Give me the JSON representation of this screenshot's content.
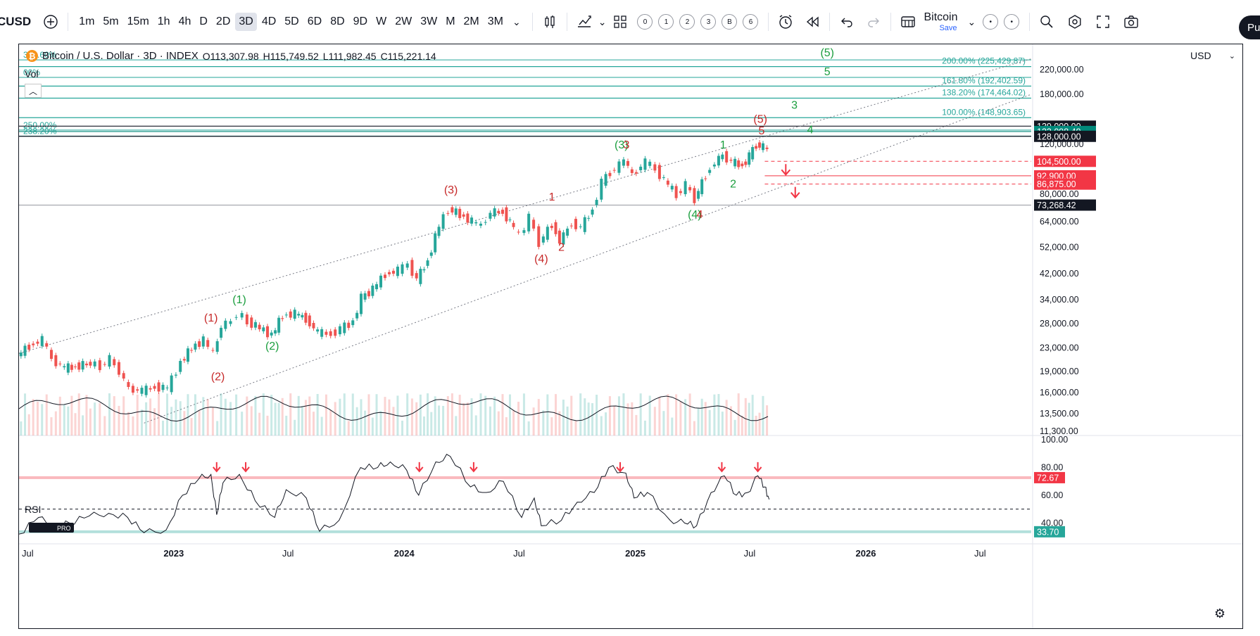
{
  "toolbar": {
    "symbol": "CUSD",
    "add_icon": "plus-circle-icon",
    "timeframes": [
      "1m",
      "5m",
      "15m",
      "1h",
      "4h",
      "D",
      "2D",
      "3D",
      "4D",
      "5D",
      "6D",
      "8D",
      "9D",
      "W",
      "2W",
      "3W",
      "M",
      "2M",
      "3M"
    ],
    "active_timeframe": "3D",
    "bar_counts": [
      "0",
      "1",
      "2",
      "3",
      "B",
      "6"
    ],
    "layout_name": "Bitcoin",
    "save_label": "Save",
    "publish_label": "Pu"
  },
  "legend": {
    "title": "Bitcoin / U.S. Dollar · 3D · INDEX",
    "open": "O113,307.98",
    "high": "H115,749.52",
    "low": "L111,982.45",
    "close": "C115,221.14",
    "vol_label": "Vol",
    "rsi_label": "RSI",
    "currency": "USD"
  },
  "chart_data": {
    "type": "line",
    "title": "Bitcoin / U.S. Dollar · 3D · INDEX",
    "y_scale": "log",
    "ylim": [
      11300,
      270000
    ],
    "x_range": [
      "2022-05-01",
      "2026-09-20"
    ],
    "price_axis_ticks": [
      "220,000.00",
      "180,000.00",
      "120,000.00",
      "80,000.00",
      "64,000.00",
      "52,000.00",
      "42,000.00",
      "34,000.00",
      "28,000.00",
      "23,000.00",
      "19,000.00",
      "16,000.00",
      "13,500.00",
      "11,300.00"
    ],
    "time_axis_ticks": [
      {
        "date": "2022-05-01",
        "label": "Jul"
      },
      {
        "date": "2023-01-01",
        "label": "2023"
      },
      {
        "date": "2023-07-01",
        "label": "Jul"
      },
      {
        "date": "2024-01-01",
        "label": "2024"
      },
      {
        "date": "2024-07-01",
        "label": "Jul"
      },
      {
        "date": "2025-01-01",
        "label": "2025"
      },
      {
        "date": "2025-07-01",
        "label": "Jul"
      },
      {
        "date": "2026-01-01",
        "label": "2026"
      },
      {
        "date": "2026-07-01",
        "label": "Jul"
      }
    ],
    "price_series": {
      "name": "BTCUSD",
      "points": [
        [
          "2022-05-01",
          21500
        ],
        [
          "2022-05-20",
          23500
        ],
        [
          "2022-06-10",
          24500
        ],
        [
          "2022-06-25",
          21000
        ],
        [
          "2022-07-15",
          19500
        ],
        [
          "2022-08-01",
          19800
        ],
        [
          "2022-08-25",
          20300
        ],
        [
          "2022-09-10",
          19900
        ],
        [
          "2022-09-25",
          21000
        ],
        [
          "2022-10-10",
          19000
        ],
        [
          "2022-10-25",
          16500
        ],
        [
          "2022-11-15",
          16200
        ],
        [
          "2022-12-05",
          16800
        ],
        [
          "2022-12-25",
          16600
        ],
        [
          "2023-01-15",
          20500
        ],
        [
          "2023-02-01",
          23000
        ],
        [
          "2023-02-20",
          24500
        ],
        [
          "2023-03-08",
          22000
        ],
        [
          "2023-03-20",
          27500
        ],
        [
          "2023-04-05",
          28500
        ],
        [
          "2023-04-15",
          30500
        ],
        [
          "2023-05-01",
          28500
        ],
        [
          "2023-05-20",
          27000
        ],
        [
          "2023-06-08",
          25500
        ],
        [
          "2023-06-25",
          30000
        ],
        [
          "2023-07-15",
          30300
        ],
        [
          "2023-08-01",
          29200
        ],
        [
          "2023-08-20",
          26000
        ],
        [
          "2023-09-10",
          25800
        ],
        [
          "2023-09-25",
          26800
        ],
        [
          "2023-10-15",
          28500
        ],
        [
          "2023-10-28",
          34500
        ],
        [
          "2023-11-15",
          37000
        ],
        [
          "2023-12-05",
          42000
        ],
        [
          "2023-12-25",
          43000
        ],
        [
          "2024-01-10",
          45500
        ],
        [
          "2024-01-24",
          40000
        ],
        [
          "2024-02-10",
          47000
        ],
        [
          "2024-02-28",
          62000
        ],
        [
          "2024-03-14",
          71000
        ],
        [
          "2024-04-01",
          68000
        ],
        [
          "2024-04-20",
          64000
        ],
        [
          "2024-05-05",
          62000
        ],
        [
          "2024-05-20",
          69000
        ],
        [
          "2024-06-08",
          69500
        ],
        [
          "2024-06-25",
          61000
        ],
        [
          "2024-07-05",
          57000
        ],
        [
          "2024-07-20",
          66000
        ],
        [
          "2024-08-05",
          54000
        ],
        [
          "2024-08-25",
          63000
        ],
        [
          "2024-09-06",
          54500
        ],
        [
          "2024-09-25",
          63500
        ],
        [
          "2024-10-10",
          61000
        ],
        [
          "2024-10-28",
          71000
        ],
        [
          "2024-11-12",
          88000
        ],
        [
          "2024-11-25",
          96000
        ],
        [
          "2024-12-10",
          101000
        ],
        [
          "2024-12-17",
          106000
        ],
        [
          "2024-12-30",
          93500
        ],
        [
          "2025-01-20",
          104000
        ],
        [
          "2025-02-05",
          98000
        ],
        [
          "2025-02-25",
          86000
        ],
        [
          "2025-03-10",
          80000
        ],
        [
          "2025-03-25",
          86000
        ],
        [
          "2025-04-08",
          77000
        ],
        [
          "2025-04-25",
          94000
        ],
        [
          "2025-05-10",
          103500
        ],
        [
          "2025-05-22",
          110000
        ],
        [
          "2025-06-05",
          104000
        ],
        [
          "2025-06-22",
          101000
        ],
        [
          "2025-07-03",
          109000
        ],
        [
          "2025-07-14",
          120000
        ],
        [
          "2025-07-25",
          117000
        ],
        [
          "2025-08-01",
          115221
        ]
      ]
    },
    "rsi": {
      "name": "RSI",
      "axis_ticks": [
        "100.00",
        "80.00",
        "60.00",
        "40.00"
      ],
      "upper_level": 72.67,
      "middle_level": 50,
      "lower_level": 33.7,
      "points": [
        [
          "2022-05-01",
          32
        ],
        [
          "2022-06-01",
          44
        ],
        [
          "2022-06-25",
          37
        ],
        [
          "2022-07-20",
          40
        ],
        [
          "2022-08-20",
          45
        ],
        [
          "2022-09-20",
          47
        ],
        [
          "2022-10-20",
          44
        ],
        [
          "2022-11-15",
          33
        ],
        [
          "2022-12-20",
          35
        ],
        [
          "2023-01-15",
          60
        ],
        [
          "2023-02-10",
          72
        ],
        [
          "2023-03-01",
          75
        ],
        [
          "2023-03-10",
          46
        ],
        [
          "2023-03-20",
          69
        ],
        [
          "2023-04-15",
          75
        ],
        [
          "2023-05-10",
          56
        ],
        [
          "2023-06-10",
          44
        ],
        [
          "2023-06-28",
          64
        ],
        [
          "2023-07-30",
          58
        ],
        [
          "2023-08-20",
          34
        ],
        [
          "2023-09-20",
          42
        ],
        [
          "2023-10-24",
          80
        ],
        [
          "2023-11-20",
          80
        ],
        [
          "2023-12-10",
          84
        ],
        [
          "2024-01-05",
          78
        ],
        [
          "2024-01-24",
          60
        ],
        [
          "2024-02-20",
          84
        ],
        [
          "2024-03-14",
          88
        ],
        [
          "2024-04-15",
          66
        ],
        [
          "2024-05-10",
          62
        ],
        [
          "2024-06-06",
          70
        ],
        [
          "2024-07-05",
          44
        ],
        [
          "2024-07-25",
          58
        ],
        [
          "2024-08-05",
          38
        ],
        [
          "2024-09-06",
          42
        ],
        [
          "2024-10-01",
          55
        ],
        [
          "2024-10-28",
          62
        ],
        [
          "2024-11-20",
          80
        ],
        [
          "2024-12-17",
          76
        ],
        [
          "2024-12-30",
          58
        ],
        [
          "2025-01-20",
          62
        ],
        [
          "2025-02-25",
          42
        ],
        [
          "2025-03-20",
          40
        ],
        [
          "2025-04-08",
          38
        ],
        [
          "2025-05-01",
          62
        ],
        [
          "2025-05-22",
          74
        ],
        [
          "2025-06-10",
          60
        ],
        [
          "2025-06-28",
          62
        ],
        [
          "2025-07-14",
          74
        ],
        [
          "2025-07-25",
          66
        ],
        [
          "2025-08-01",
          57
        ]
      ]
    },
    "price_labels": [
      {
        "value": 139000,
        "label": "139,000.00",
        "color": "#131722"
      },
      {
        "value": 133098.49,
        "label": "133,098.49",
        "color": "#00897b"
      },
      {
        "value": 128000,
        "label": "128,000.00",
        "color": "#131722"
      },
      {
        "value": 104500,
        "label": "104,500.00",
        "color": "#f23645"
      },
      {
        "value": 92900,
        "label": "92,900.00",
        "color": "#f23645"
      },
      {
        "value": 86875,
        "label": "86,875.00",
        "color": "#f23645"
      },
      {
        "value": 73268.42,
        "label": "73,268.42",
        "color": "#131722"
      }
    ],
    "rsi_labels": [
      {
        "value": 72.67,
        "label": "72.67",
        "color": "#f23645"
      },
      {
        "value": 33.7,
        "label": "33.70",
        "color": "#26a69a"
      }
    ],
    "fib_levels": [
      {
        "value": 225429.87,
        "label": "200.00% (225,429.87)"
      },
      {
        "value": 192402.59,
        "label": "161.80% (192,402.59)"
      },
      {
        "value": 174464.02,
        "label": "138.20% (174,464.02)"
      },
      {
        "value": 148903.65,
        "label": "100.00% (148,903.65)"
      }
    ],
    "fib_left_labels": [
      {
        "value": 242000,
        "label": "323.60%"
      },
      {
        "value": 210000,
        "label": "00%"
      },
      {
        "value": 137000,
        "label": "250.00%"
      },
      {
        "value": 130500,
        "label": "238.20%"
      }
    ],
    "wave_labels": [
      {
        "date": "2023-03-01",
        "value": 28500,
        "label": "(1)",
        "color": "#c62828"
      },
      {
        "date": "2023-03-12",
        "value": 17700,
        "label": "(2)",
        "color": "#c62828"
      },
      {
        "date": "2023-04-15",
        "value": 33000,
        "label": "(1)",
        "color": "#1b9e3e"
      },
      {
        "date": "2023-06-06",
        "value": 22700,
        "label": "(2)",
        "color": "#1b9e3e"
      },
      {
        "date": "2024-03-15",
        "value": 80500,
        "label": "(3)",
        "color": "#c62828"
      },
      {
        "date": "2024-08-05",
        "value": 46000,
        "label": "(4)",
        "color": "#c62828"
      },
      {
        "date": "2024-08-22",
        "value": 76000,
        "label": "1",
        "color": "#c62828"
      },
      {
        "date": "2024-09-06",
        "value": 50500,
        "label": "2",
        "color": "#c62828"
      },
      {
        "date": "2024-12-10",
        "value": 116000,
        "label": "(3)",
        "color": "#1b9e3e"
      },
      {
        "date": "2024-12-18",
        "value": 116000,
        "label": "3",
        "color": "#c62828"
      },
      {
        "date": "2025-04-05",
        "value": 66000,
        "label": "(4)",
        "color": "#1b9e3e"
      },
      {
        "date": "2025-04-13",
        "value": 66000,
        "label": "4",
        "color": "#c62828"
      },
      {
        "date": "2025-05-20",
        "value": 116000,
        "label": "1",
        "color": "#1b9e3e"
      },
      {
        "date": "2025-06-05",
        "value": 84500,
        "label": "2",
        "color": "#1b9e3e"
      },
      {
        "date": "2025-07-18",
        "value": 143000,
        "label": "(5)",
        "color": "#c62828"
      },
      {
        "date": "2025-07-20",
        "value": 130000,
        "label": "5",
        "color": "#c62828"
      },
      {
        "date": "2025-09-10",
        "value": 160000,
        "label": "3",
        "color": "#1b9e3e"
      },
      {
        "date": "2025-10-05",
        "value": 131000,
        "label": "4",
        "color": "#1b9e3e"
      },
      {
        "date": "2025-11-01",
        "value": 210000,
        "label": "5",
        "color": "#1b9e3e"
      },
      {
        "date": "2025-11-01",
        "value": 245000,
        "label": "(5)",
        "color": "#1b9e3e"
      }
    ],
    "channel": [
      {
        "from": [
          "2022-05-01",
          22000
        ],
        "to": [
          "2026-09-20",
          240000
        ]
      },
      {
        "from": [
          "2022-11-15",
          12500
        ],
        "to": [
          "2026-09-20",
          180000
        ]
      }
    ],
    "rsi_arrows": [
      "2023-03-10",
      "2023-04-25",
      "2024-01-25",
      "2024-04-20",
      "2024-12-08",
      "2025-05-18",
      "2025-07-14"
    ]
  }
}
